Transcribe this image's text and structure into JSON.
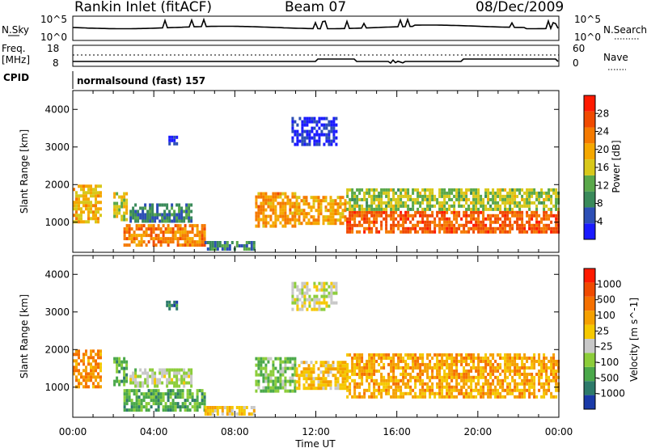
{
  "header": {
    "station": "Rankin Inlet (fitACF)",
    "beam": "Beam 07",
    "date": "08/Dec/2009"
  },
  "top_panels": {
    "nsky_label": "N.Sky",
    "nsky_ticks": [
      "10^5",
      "10^0"
    ],
    "nsearch_label": "N.Search",
    "nsearch_ticks": [
      "10^5",
      "10^0"
    ],
    "freq_label": "Freq.",
    "freq_unit": "[MHz]",
    "freq_ticks": [
      "18",
      "8"
    ],
    "nave_label": "Nave",
    "nave_ticks": [
      "60",
      "0"
    ],
    "cpid_label": "CPID",
    "cpid_text": "normalsound (fast) 157"
  },
  "chart_data": [
    {
      "type": "heatmap",
      "panel": "power",
      "ylabel": "Slant Range [km]",
      "xlabel": "",
      "x_ticks": [
        "00:00",
        "04:00",
        "08:00",
        "12:00",
        "16:00",
        "20:00",
        "00:00"
      ],
      "y_ticks": [
        "1000",
        "2000",
        "3000",
        "4000"
      ],
      "ylim": [
        200,
        4500
      ],
      "xlim": [
        0,
        24
      ],
      "colorbar": {
        "label": "Power [dB]",
        "ticks": [
          "4",
          "8",
          "12",
          "16",
          "20",
          "24",
          "28"
        ],
        "colors": [
          "#1a1aff",
          "#2d4fb5",
          "#3a8a5a",
          "#5aa84a",
          "#d8c81a",
          "#f5a800",
          "#f57a00",
          "#f04a00",
          "#ff1a00"
        ]
      },
      "regions": [
        {
          "t0": 0.0,
          "t1": 1.4,
          "r0": 1000,
          "r1": 2000,
          "level": 0.65
        },
        {
          "t0": 2.0,
          "t1": 2.6,
          "r0": 1100,
          "r1": 1800,
          "level": 0.55
        },
        {
          "t0": 2.8,
          "t1": 5.8,
          "r0": 1000,
          "r1": 1500,
          "level": 0.3
        },
        {
          "t0": 2.5,
          "t1": 6.5,
          "r0": 350,
          "r1": 950,
          "level": 0.8
        },
        {
          "t0": 6.5,
          "t1": 9.0,
          "r0": 300,
          "r1": 500,
          "level": 0.3
        },
        {
          "t0": 9.0,
          "t1": 11.0,
          "r0": 900,
          "r1": 1800,
          "level": 0.75
        },
        {
          "t0": 11.0,
          "t1": 13.5,
          "r0": 1000,
          "r1": 1700,
          "level": 0.7
        },
        {
          "t0": 13.5,
          "t1": 24.0,
          "r0": 700,
          "r1": 1300,
          "level": 0.9
        },
        {
          "t0": 13.5,
          "t1": 24.0,
          "r0": 1300,
          "r1": 1900,
          "level": 0.5
        },
        {
          "t0": 10.8,
          "t1": 13.0,
          "r0": 3100,
          "r1": 3800,
          "level": 0.1
        },
        {
          "t0": 4.6,
          "t1": 5.1,
          "r0": 3100,
          "r1": 3300,
          "level": 0.05
        }
      ]
    },
    {
      "type": "heatmap",
      "panel": "velocity",
      "ylabel": "Slant Range [km]",
      "xlabel": "Time UT",
      "x_ticks": [
        "00:00",
        "04:00",
        "08:00",
        "12:00",
        "16:00",
        "20:00",
        "00:00"
      ],
      "y_ticks": [
        "1000",
        "2000",
        "3000",
        "4000"
      ],
      "ylim": [
        200,
        4500
      ],
      "xlim": [
        0,
        24
      ],
      "colorbar": {
        "label": "Velocity [m s^-1]",
        "ticks": [
          "1000",
          "500",
          "100",
          "25",
          "-25",
          "-100",
          "-500",
          "-1000"
        ],
        "colors": [
          "#1a3aa8",
          "#2d7a6a",
          "#4aa84a",
          "#8ccd3a",
          "#c8c8c8",
          "#f5c800",
          "#f5a000",
          "#f57000",
          "#f04a00",
          "#ff1a00"
        ]
      },
      "regions": [
        {
          "t0": 0.0,
          "t1": 1.4,
          "r0": 1000,
          "r1": 2000,
          "level": 0.75
        },
        {
          "t0": 2.0,
          "t1": 2.6,
          "r0": 1100,
          "r1": 1800,
          "level": 0.3
        },
        {
          "t0": 2.8,
          "t1": 5.8,
          "r0": 1000,
          "r1": 1500,
          "level": 0.45
        },
        {
          "t0": 2.5,
          "t1": 6.5,
          "r0": 350,
          "r1": 950,
          "level": 0.3
        },
        {
          "t0": 6.5,
          "t1": 9.0,
          "r0": 300,
          "r1": 500,
          "level": 0.6
        },
        {
          "t0": 9.0,
          "t1": 11.0,
          "r0": 900,
          "r1": 1800,
          "level": 0.35
        },
        {
          "t0": 11.0,
          "t1": 13.5,
          "r0": 1000,
          "r1": 1700,
          "level": 0.65
        },
        {
          "t0": 13.5,
          "t1": 24.0,
          "r0": 700,
          "r1": 1300,
          "level": 0.7
        },
        {
          "t0": 13.5,
          "t1": 24.0,
          "r0": 1300,
          "r1": 1900,
          "level": 0.72
        },
        {
          "t0": 10.8,
          "t1": 13.0,
          "r0": 3100,
          "r1": 3800,
          "level": 0.5
        },
        {
          "t0": 4.6,
          "t1": 5.1,
          "r0": 3100,
          "r1": 3300,
          "level": 0.2
        }
      ]
    }
  ]
}
